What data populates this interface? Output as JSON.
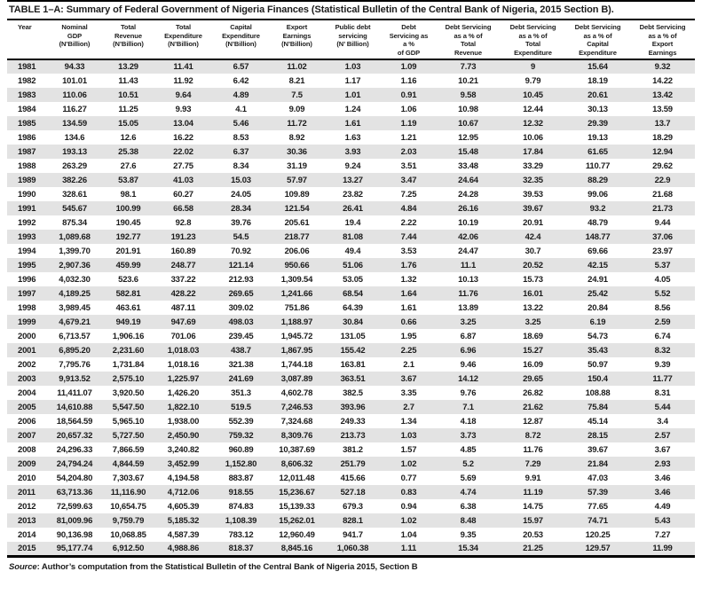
{
  "title": "TABLE 1–A: Summary of Federal Government of Nigeria Finances (Statistical Bulletin of the Central Bank of Nigeria, 2015 Section B).",
  "source_note": {
    "prefix": "Source",
    "text": ": Author’s computation from the Statistical Bulletin of the Central Bank of Nigeria 2015, Section B"
  },
  "colors": {
    "stripe": "#e3e3e3",
    "border": "#000000",
    "text": "#1c1c1c",
    "background": "#ffffff"
  },
  "table": {
    "columns": [
      {
        "id": "year",
        "label": "Year"
      },
      {
        "id": "nominal-gdp",
        "label": "Nominal\nGDP\n(N’Billion)"
      },
      {
        "id": "total-revenue",
        "label": "Total\nRevenue\n(N’Billion)"
      },
      {
        "id": "total-expenditure",
        "label": "Total\nExpenditure\n(N’Billion)"
      },
      {
        "id": "capital-expenditure",
        "label": "Capital\nExpenditure\n(N’Billion)"
      },
      {
        "id": "export-earnings",
        "label": "Export\nEarnings\n(N’Billion)"
      },
      {
        "id": "public-debt-servicing",
        "label": "Public debt\nservicing\n(N’ Billion)"
      },
      {
        "id": "debt-servicing-pct-gdp",
        "label": "Debt\nServicing as\na %\nof GDP"
      },
      {
        "id": "debt-servicing-pct-total-revenue",
        "label": "Debt Servicing\nas a % of\nTotal\nRevenue"
      },
      {
        "id": "debt-servicing-pct-total-expenditure",
        "label": "Debt Servicing\nas a % of\nTotal\nExpenditure"
      },
      {
        "id": "debt-servicing-pct-capital-expenditure",
        "label": "Debt Servicing\nas a % of\nCapital\nExpenditure"
      },
      {
        "id": "debt-servicing-pct-export-earnings",
        "label": "Debt Servicing\nas a % of\nExport\nEarnings"
      }
    ],
    "rows": [
      [
        "1981",
        "94.33",
        "13.29",
        "11.41",
        "6.57",
        "11.02",
        "1.03",
        "1.09",
        "7.73",
        "9",
        "15.64",
        "9.32"
      ],
      [
        "1982",
        "101.01",
        "11.43",
        "11.92",
        "6.42",
        "8.21",
        "1.17",
        "1.16",
        "10.21",
        "9.79",
        "18.19",
        "14.22"
      ],
      [
        "1983",
        "110.06",
        "10.51",
        "9.64",
        "4.89",
        "7.5",
        "1.01",
        "0.91",
        "9.58",
        "10.45",
        "20.61",
        "13.42"
      ],
      [
        "1984",
        "116.27",
        "11.25",
        "9.93",
        "4.1",
        "9.09",
        "1.24",
        "1.06",
        "10.98",
        "12.44",
        "30.13",
        "13.59"
      ],
      [
        "1985",
        "134.59",
        "15.05",
        "13.04",
        "5.46",
        "11.72",
        "1.61",
        "1.19",
        "10.67",
        "12.32",
        "29.39",
        "13.7"
      ],
      [
        "1986",
        "134.6",
        "12.6",
        "16.22",
        "8.53",
        "8.92",
        "1.63",
        "1.21",
        "12.95",
        "10.06",
        "19.13",
        "18.29"
      ],
      [
        "1987",
        "193.13",
        "25.38",
        "22.02",
        "6.37",
        "30.36",
        "3.93",
        "2.03",
        "15.48",
        "17.84",
        "61.65",
        "12.94"
      ],
      [
        "1988",
        "263.29",
        "27.6",
        "27.75",
        "8.34",
        "31.19",
        "9.24",
        "3.51",
        "33.48",
        "33.29",
        "110.77",
        "29.62"
      ],
      [
        "1989",
        "382.26",
        "53.87",
        "41.03",
        "15.03",
        "57.97",
        "13.27",
        "3.47",
        "24.64",
        "32.35",
        "88.29",
        "22.9"
      ],
      [
        "1990",
        "328.61",
        "98.1",
        "60.27",
        "24.05",
        "109.89",
        "23.82",
        "7.25",
        "24.28",
        "39.53",
        "99.06",
        "21.68"
      ],
      [
        "1991",
        "545.67",
        "100.99",
        "66.58",
        "28.34",
        "121.54",
        "26.41",
        "4.84",
        "26.16",
        "39.67",
        "93.2",
        "21.73"
      ],
      [
        "1992",
        "875.34",
        "190.45",
        "92.8",
        "39.76",
        "205.61",
        "19.4",
        "2.22",
        "10.19",
        "20.91",
        "48.79",
        "9.44"
      ],
      [
        "1993",
        "1,089.68",
        "192.77",
        "191.23",
        "54.5",
        "218.77",
        "81.08",
        "7.44",
        "42.06",
        "42.4",
        "148.77",
        "37.06"
      ],
      [
        "1994",
        "1,399.70",
        "201.91",
        "160.89",
        "70.92",
        "206.06",
        "49.4",
        "3.53",
        "24.47",
        "30.7",
        "69.66",
        "23.97"
      ],
      [
        "1995",
        "2,907.36",
        "459.99",
        "248.77",
        "121.14",
        "950.66",
        "51.06",
        "1.76",
        "11.1",
        "20.52",
        "42.15",
        "5.37"
      ],
      [
        "1996",
        "4,032.30",
        "523.6",
        "337.22",
        "212.93",
        "1,309.54",
        "53.05",
        "1.32",
        "10.13",
        "15.73",
        "24.91",
        "4.05"
      ],
      [
        "1997",
        "4,189.25",
        "582.81",
        "428.22",
        "269.65",
        "1,241.66",
        "68.54",
        "1.64",
        "11.76",
        "16.01",
        "25.42",
        "5.52"
      ],
      [
        "1998",
        "3,989.45",
        "463.61",
        "487.11",
        "309.02",
        "751.86",
        "64.39",
        "1.61",
        "13.89",
        "13.22",
        "20.84",
        "8.56"
      ],
      [
        "1999",
        "4,679.21",
        "949.19",
        "947.69",
        "498.03",
        "1,188.97",
        "30.84",
        "0.66",
        "3.25",
        "3.25",
        "6.19",
        "2.59"
      ],
      [
        "2000",
        "6,713.57",
        "1,906.16",
        "701.06",
        "239.45",
        "1,945.72",
        "131.05",
        "1.95",
        "6.87",
        "18.69",
        "54.73",
        "6.74"
      ],
      [
        "2001",
        "6,895.20",
        "2,231.60",
        "1,018.03",
        "438.7",
        "1,867.95",
        "155.42",
        "2.25",
        "6.96",
        "15.27",
        "35.43",
        "8.32"
      ],
      [
        "2002",
        "7,795.76",
        "1,731.84",
        "1,018.16",
        "321.38",
        "1,744.18",
        "163.81",
        "2.1",
        "9.46",
        "16.09",
        "50.97",
        "9.39"
      ],
      [
        "2003",
        "9,913.52",
        "2,575.10",
        "1,225.97",
        "241.69",
        "3,087.89",
        "363.51",
        "3.67",
        "14.12",
        "29.65",
        "150.4",
        "11.77"
      ],
      [
        "2004",
        "11,411.07",
        "3,920.50",
        "1,426.20",
        "351.3",
        "4,602.78",
        "382.5",
        "3.35",
        "9.76",
        "26.82",
        "108.88",
        "8.31"
      ],
      [
        "2005",
        "14,610.88",
        "5,547.50",
        "1,822.10",
        "519.5",
        "7,246.53",
        "393.96",
        "2.7",
        "7.1",
        "21.62",
        "75.84",
        "5.44"
      ],
      [
        "2006",
        "18,564.59",
        "5,965.10",
        "1,938.00",
        "552.39",
        "7,324.68",
        "249.33",
        "1.34",
        "4.18",
        "12.87",
        "45.14",
        "3.4"
      ],
      [
        "2007",
        "20,657.32",
        "5,727.50",
        "2,450.90",
        "759.32",
        "8,309.76",
        "213.73",
        "1.03",
        "3.73",
        "8.72",
        "28.15",
        "2.57"
      ],
      [
        "2008",
        "24,296.33",
        "7,866.59",
        "3,240.82",
        "960.89",
        "10,387.69",
        "381.2",
        "1.57",
        "4.85",
        "11.76",
        "39.67",
        "3.67"
      ],
      [
        "2009",
        "24,794.24",
        "4,844.59",
        "3,452.99",
        "1,152.80",
        "8,606.32",
        "251.79",
        "1.02",
        "5.2",
        "7.29",
        "21.84",
        "2.93"
      ],
      [
        "2010",
        "54,204.80",
        "7,303.67",
        "4,194.58",
        "883.87",
        "12,011.48",
        "415.66",
        "0.77",
        "5.69",
        "9.91",
        "47.03",
        "3.46"
      ],
      [
        "2011",
        "63,713.36",
        "11,116.90",
        "4,712.06",
        "918.55",
        "15,236.67",
        "527.18",
        "0.83",
        "4.74",
        "11.19",
        "57.39",
        "3.46"
      ],
      [
        "2012",
        "72,599.63",
        "10,654.75",
        "4,605.39",
        "874.83",
        "15,139.33",
        "679.3",
        "0.94",
        "6.38",
        "14.75",
        "77.65",
        "4.49"
      ],
      [
        "2013",
        "81,009.96",
        "9,759.79",
        "5,185.32",
        "1,108.39",
        "15,262.01",
        "828.1",
        "1.02",
        "8.48",
        "15.97",
        "74.71",
        "5.43"
      ],
      [
        "2014",
        "90,136.98",
        "10,068.85",
        "4,587.39",
        "783.12",
        "12,960.49",
        "941.7",
        "1.04",
        "9.35",
        "20.53",
        "120.25",
        "7.27"
      ],
      [
        "2015",
        "95,177.74",
        "6,912.50",
        "4,988.86",
        "818.37",
        "8,845.16",
        "1,060.38",
        "1.11",
        "15.34",
        "21.25",
        "129.57",
        "11.99"
      ]
    ]
  }
}
